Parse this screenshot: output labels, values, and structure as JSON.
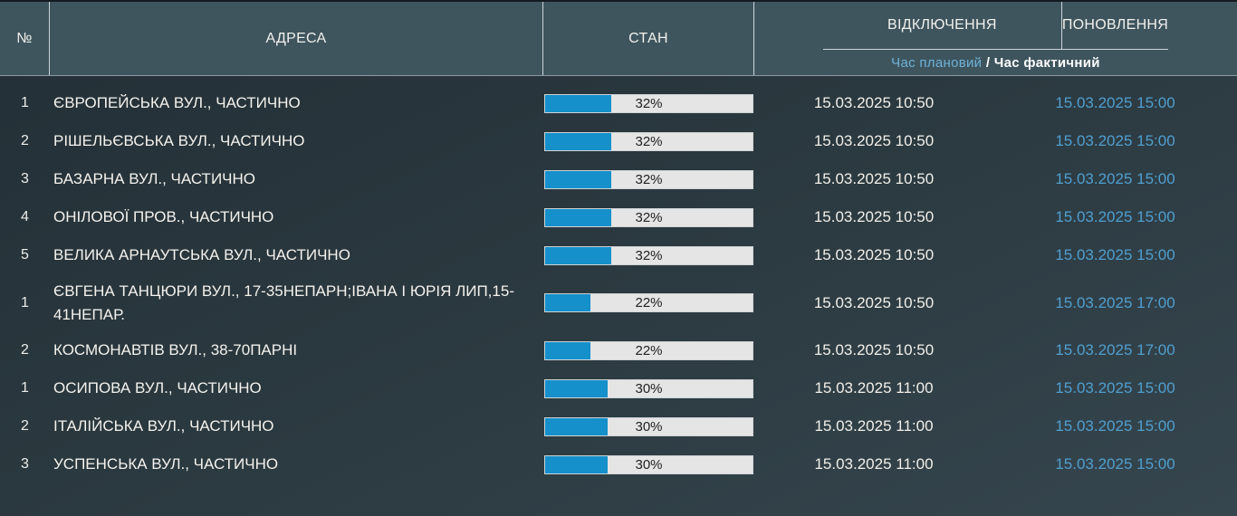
{
  "header": {
    "col_num": "№",
    "col_address": "АДРЕСА",
    "col_state": "СТАН",
    "col_off": "ВІДКЛЮЧЕННЯ",
    "col_on": "ПОНОВЛЕННЯ",
    "sub_planned": "Час плановий",
    "sub_separator": " / ",
    "sub_actual": "Час фактичний"
  },
  "rows": [
    {
      "num": "1",
      "address": "ЄВРОПЕЙСЬКА ВУЛ., ЧАСТИЧНО",
      "percent": 32,
      "percent_label": "32%",
      "off_time": "15.03.2025 10:50",
      "on_time": "15.03.2025 15:00"
    },
    {
      "num": "2",
      "address": "РІШЕЛЬЄВСЬКА ВУЛ., ЧАСТИЧНО",
      "percent": 32,
      "percent_label": "32%",
      "off_time": "15.03.2025 10:50",
      "on_time": "15.03.2025 15:00"
    },
    {
      "num": "3",
      "address": "БАЗАРНА ВУЛ., ЧАСТИЧНО",
      "percent": 32,
      "percent_label": "32%",
      "off_time": "15.03.2025 10:50",
      "on_time": "15.03.2025 15:00"
    },
    {
      "num": "4",
      "address": "ОНІЛОВОЇ ПРОВ., ЧАСТИЧНО",
      "percent": 32,
      "percent_label": "32%",
      "off_time": "15.03.2025 10:50",
      "on_time": "15.03.2025 15:00"
    },
    {
      "num": "5",
      "address": "ВЕЛИКА АРНАУТСЬКА ВУЛ., ЧАСТИЧНО",
      "percent": 32,
      "percent_label": "32%",
      "off_time": "15.03.2025 10:50",
      "on_time": "15.03.2025 15:00"
    },
    {
      "num": "1",
      "address": "ЄВГЕНА ТАНЦЮРИ ВУЛ., 17-35НЕПАРН;ІВАНА І ЮРІЯ ЛИП,15-41НЕПАР.",
      "percent": 22,
      "percent_label": "22%",
      "off_time": "15.03.2025 10:50",
      "on_time": "15.03.2025 17:00"
    },
    {
      "num": "2",
      "address": "КОСМОНАВТІВ ВУЛ., 38-70ПАРНІ",
      "percent": 22,
      "percent_label": "22%",
      "off_time": "15.03.2025 10:50",
      "on_time": "15.03.2025 17:00"
    },
    {
      "num": "1",
      "address": "ОСИПОВА ВУЛ., ЧАСТИЧНО",
      "percent": 30,
      "percent_label": "30%",
      "off_time": "15.03.2025 11:00",
      "on_time": "15.03.2025 15:00"
    },
    {
      "num": "2",
      "address": "ІТАЛІЙСЬКА ВУЛ., ЧАСТИЧНО",
      "percent": 30,
      "percent_label": "30%",
      "off_time": "15.03.2025 11:00",
      "on_time": "15.03.2025 15:00"
    },
    {
      "num": "3",
      "address": "УСПЕНСЬКА ВУЛ., ЧАСТИЧНО",
      "percent": 30,
      "percent_label": "30%",
      "off_time": "15.03.2025 11:00",
      "on_time": "15.03.2025 15:00"
    }
  ],
  "colors": {
    "header_bg": "#3E555E",
    "body_bg_top": "#232F36",
    "body_bg_bottom": "#36464E",
    "bar_fill": "#1590CA",
    "bar_track": "#E5E5E5",
    "bar_label_text": "#222222",
    "planned_time_text": "#F2EFE9",
    "actual_time_text": "#4F9FD0",
    "subheader_link": "#6FB1D8"
  }
}
